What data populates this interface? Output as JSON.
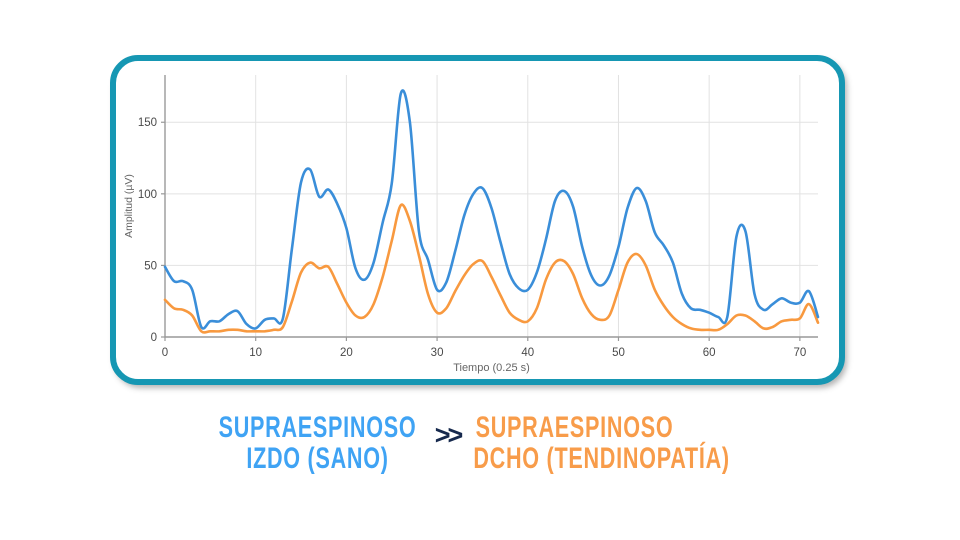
{
  "chart_data": {
    "type": "line",
    "title": "",
    "xlabel": "Tiempo (0.25 s)",
    "ylabel": "Amplitud (µV)",
    "x_ticks": [
      0,
      10,
      20,
      30,
      40,
      50,
      60,
      70
    ],
    "y_ticks": [
      0,
      50,
      100,
      150
    ],
    "xlim": [
      0,
      72
    ],
    "ylim": [
      0,
      183
    ],
    "grid": true,
    "legend_position": "none",
    "x_start": 0,
    "x_step": 1,
    "series": [
      {
        "name": "Supraespinoso izdo (sano)",
        "color": "#3a8ed9",
        "values": [
          49,
          39,
          39,
          33,
          7,
          11,
          11,
          16,
          18,
          9,
          6,
          12,
          13,
          13,
          62,
          108,
          117,
          98,
          103,
          93,
          76,
          48,
          40,
          52,
          80,
          107,
          170,
          150,
          74,
          54,
          33,
          38,
          60,
          85,
          100,
          104,
          90,
          66,
          44,
          34,
          33,
          45,
          68,
          95,
          102,
          91,
          63,
          43,
          36,
          43,
          63,
          90,
          104,
          95,
          73,
          64,
          52,
          30,
          20,
          19,
          17,
          14,
          14,
          70,
          74,
          30,
          19,
          23,
          27,
          24,
          24,
          32,
          14
        ]
      },
      {
        "name": "Supraespinoso dcho (tendinopatía)",
        "color": "#f8993f",
        "values": [
          26,
          20,
          19,
          15,
          4,
          4,
          4,
          5,
          5,
          4,
          4,
          4,
          5,
          7,
          25,
          45,
          52,
          48,
          49,
          37,
          24,
          15,
          14,
          23,
          42,
          67,
          92,
          81,
          57,
          30,
          17,
          20,
          32,
          43,
          51,
          53,
          42,
          29,
          17,
          12,
          11,
          20,
          40,
          52,
          53,
          44,
          27,
          16,
          12,
          15,
          33,
          52,
          58,
          50,
          33,
          22,
          14,
          9,
          6,
          5,
          5,
          5,
          9,
          15,
          15,
          11,
          6,
          7,
          11,
          12,
          13,
          23,
          10
        ]
      }
    ]
  },
  "caption": {
    "left": {
      "line1": "SUPRAESPINOSO",
      "line2": "IZDO (SANO)",
      "color": "#3fa3f4"
    },
    "separator": ">>",
    "separator_color": "#16294d",
    "right": {
      "line1": "SUPRAESPINOSO",
      "line2": "DCHO (TENDINOPATÍA)",
      "color": "#f89c4a"
    }
  },
  "colors": {
    "card_border": "#1697b3",
    "axis": "#999999",
    "grid": "#e2e2e2",
    "tick_label": "#4a4a4a",
    "axis_label": "#666666"
  }
}
